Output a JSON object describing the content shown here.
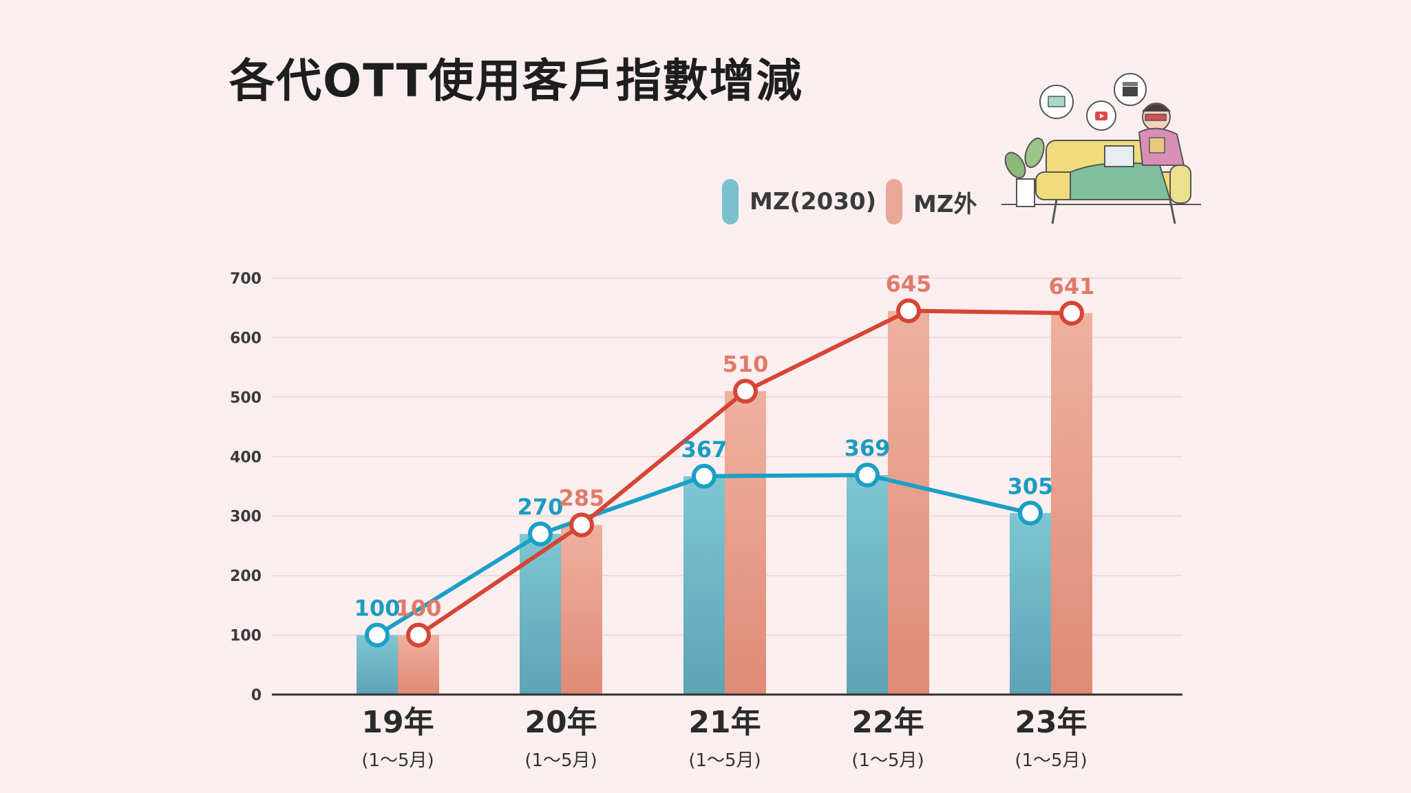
{
  "title": "各代OTT使用客戶指數增減",
  "colors": {
    "mz": "#1aa0c4",
    "mz_bar": "#78c1cf",
    "other": "#d64535",
    "other_bar": "#e9a797",
    "axis": "#333333",
    "grid": "#f0d8d8"
  },
  "legend": [
    {
      "label": "MZ(2030)",
      "color": "#78c1cf"
    },
    {
      "label": "MZ外",
      "color": "#e9a797"
    }
  ],
  "chart_data": {
    "type": "bar",
    "categories": [
      "19年",
      "20年",
      "21年",
      "22年",
      "23年"
    ],
    "category_sublabels": [
      "(1〜5月)",
      "(1〜5月)",
      "(1〜5月)",
      "(1〜5月)",
      "(1〜5月)"
    ],
    "series": [
      {
        "name": "MZ(2030)",
        "values": [
          100,
          270,
          367,
          369,
          305
        ]
      },
      {
        "name": "MZ外",
        "values": [
          100,
          285,
          510,
          645,
          641
        ]
      }
    ],
    "overlay": "line",
    "yticks": [
      0,
      100,
      200,
      300,
      400,
      500,
      600,
      700
    ],
    "ylim": [
      0,
      700
    ],
    "grid": true,
    "legend_position": "top-right"
  }
}
